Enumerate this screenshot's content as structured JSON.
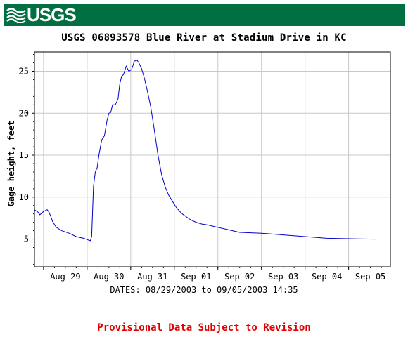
{
  "header": {
    "logo_text": "USGS",
    "banner_color": "#006f41"
  },
  "chart_data": {
    "type": "line",
    "title": "USGS 06893578 Blue River at Stadium Drive in KC",
    "xlabel": "DATES: 08/29/2003 to 09/05/2003 14:35",
    "ylabel": "Gage height, feet",
    "x_tick_labels": [
      "Aug 29",
      "Aug 30",
      "Aug 31",
      "Sep 01",
      "Sep 02",
      "Sep 03",
      "Sep 04",
      "Sep 05"
    ],
    "y_ticks": [
      5,
      10,
      15,
      20,
      25
    ],
    "y_tick_labels": [
      "5",
      "10",
      "15",
      "20",
      "25"
    ],
    "xlim": [
      "2003-08-28T19:00",
      "2003-09-05T23:00"
    ],
    "ylim": [
      1.7,
      27.3
    ],
    "grid": true,
    "line_color": "#0000cc",
    "series": [
      {
        "x": [
          "2003-08-28T19:00",
          "2003-08-28T21:00",
          "2003-08-28T22:00",
          "2003-08-29T00:00",
          "2003-08-29T02:00",
          "2003-08-29T03:00",
          "2003-08-29T04:00",
          "2003-08-29T05:00",
          "2003-08-29T07:00",
          "2003-08-29T10:00",
          "2003-08-29T14:00",
          "2003-08-29T18:00",
          "2003-08-29T22:00",
          "2003-08-30T00:00",
          "2003-08-30T01:00",
          "2003-08-30T01:45",
          "2003-08-30T02:30",
          "2003-08-30T03:30",
          "2003-08-30T04:30",
          "2003-08-30T05:30",
          "2003-08-30T06:30",
          "2003-08-30T08:00",
          "2003-08-30T09:30",
          "2003-08-30T11:00",
          "2003-08-30T12:00",
          "2003-08-30T13:00",
          "2003-08-30T14:00",
          "2003-08-30T15:30",
          "2003-08-30T17:00",
          "2003-08-30T18:00",
          "2003-08-30T19:00",
          "2003-08-30T20:00",
          "2003-08-30T21:30",
          "2003-08-30T23:00",
          "2003-08-31T00:30",
          "2003-08-31T02:00",
          "2003-08-31T03:30",
          "2003-08-31T04:30",
          "2003-08-31T06:00",
          "2003-08-31T07:30",
          "2003-08-31T09:00",
          "2003-08-31T11:00",
          "2003-08-31T13:00",
          "2003-08-31T15:00",
          "2003-08-31T17:00",
          "2003-08-31T19:00",
          "2003-08-31T21:00",
          "2003-08-31T23:00",
          "2003-09-01T01:00",
          "2003-09-01T03:00",
          "2003-09-01T05:00",
          "2003-09-01T07:00",
          "2003-09-01T09:00",
          "2003-09-01T12:00",
          "2003-09-01T15:00",
          "2003-09-01T18:00",
          "2003-09-01T21:00",
          "2003-09-02T00:00",
          "2003-09-02T06:00",
          "2003-09-02T12:00",
          "2003-09-03T00:00",
          "2003-09-03T12:00",
          "2003-09-04T00:00",
          "2003-09-04T12:00",
          "2003-09-05T00:00",
          "2003-09-05T14:35"
        ],
        "y": [
          8.5,
          8.2,
          7.9,
          8.3,
          8.5,
          8.2,
          7.7,
          7.1,
          6.4,
          6.0,
          5.7,
          5.3,
          5.1,
          4.95,
          4.85,
          4.8,
          5.3,
          11.3,
          13.0,
          13.5,
          15.0,
          16.8,
          17.3,
          19.2,
          20.0,
          20.1,
          21.0,
          21.0,
          21.7,
          23.5,
          24.4,
          24.6,
          25.6,
          25.0,
          25.2,
          26.2,
          26.3,
          26.0,
          25.3,
          24.2,
          22.8,
          20.8,
          18.0,
          15.0,
          12.7,
          11.2,
          10.2,
          9.5,
          8.8,
          8.3,
          7.9,
          7.6,
          7.3,
          7.0,
          6.8,
          6.7,
          6.55,
          6.4,
          6.1,
          5.8,
          5.7,
          5.5,
          5.3,
          5.1,
          5.05,
          5.0
        ]
      }
    ]
  },
  "footer": {
    "provisional_text": "Provisional Data Subject to Revision",
    "provisional_color": "#e00000"
  }
}
